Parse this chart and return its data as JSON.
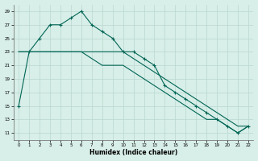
{
  "xlabel": "Humidex (Indice chaleur)",
  "bg_color": "#d8eee8",
  "grid_color": "#b8d8d0",
  "line_color": "#006655",
  "line1_x": [
    0,
    1,
    2,
    3,
    4,
    5,
    6,
    7,
    8,
    9,
    10,
    11,
    12,
    13,
    14,
    15,
    16,
    17,
    18,
    19,
    20,
    21,
    22
  ],
  "line1_y": [
    15,
    23,
    25,
    27,
    27,
    28,
    29,
    27,
    26,
    25,
    23,
    23,
    22,
    21,
    18,
    17,
    16,
    15,
    14,
    13,
    12,
    11,
    12
  ],
  "line2_x": [
    0,
    1,
    2,
    3,
    4,
    5,
    6,
    7,
    8,
    9,
    10,
    11,
    12,
    13,
    14,
    15,
    16,
    17,
    18,
    19,
    20,
    21,
    22
  ],
  "line2_y": [
    23,
    23,
    23,
    23,
    23,
    23,
    23,
    23,
    23,
    23,
    23,
    22,
    21,
    20,
    19,
    18,
    17,
    16,
    15,
    14,
    13,
    12,
    12
  ],
  "line3_x": [
    0,
    1,
    2,
    3,
    4,
    5,
    6,
    7,
    8,
    9,
    10,
    11,
    12,
    13,
    14,
    15,
    16,
    17,
    18,
    19,
    20,
    21,
    22
  ],
  "line3_y": [
    23,
    23,
    23,
    23,
    23,
    23,
    23,
    22,
    21,
    21,
    21,
    20,
    19,
    18,
    17,
    16,
    15,
    14,
    13,
    13,
    12,
    11,
    12
  ],
  "ylim": [
    10,
    30
  ],
  "xlim": [
    -0.5,
    22.5
  ],
  "yticks": [
    11,
    13,
    15,
    17,
    19,
    21,
    23,
    25,
    27,
    29
  ],
  "xticks": [
    0,
    1,
    2,
    3,
    4,
    5,
    6,
    7,
    8,
    9,
    10,
    11,
    12,
    13,
    14,
    15,
    16,
    17,
    18,
    19,
    20,
    21,
    22
  ]
}
